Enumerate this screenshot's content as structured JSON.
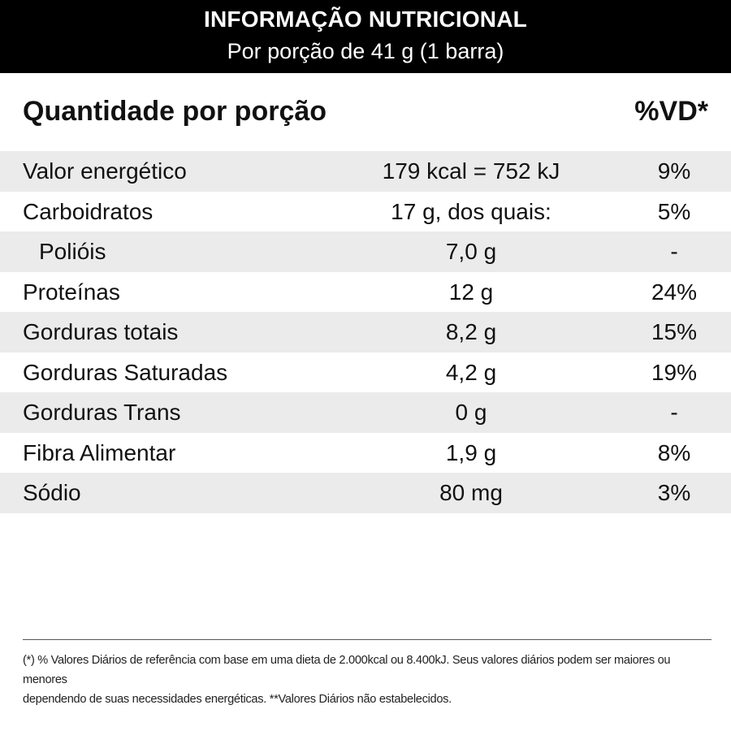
{
  "header": {
    "title": "INFORMAÇÃO NUTRICIONAL",
    "subtitle": "Por porção de 41 g (1 barra)"
  },
  "columns": {
    "quantity_heading": "Quantidade por porção",
    "vd_heading": "%VD*"
  },
  "rows": [
    {
      "name": "Valor energético",
      "qty": "179 kcal = 752 kJ",
      "vd": "9%"
    },
    {
      "name": "Carboidratos",
      "qty": "17 g, dos quais:",
      "vd": "5%"
    },
    {
      "name": "Polióis",
      "qty": "7,0 g",
      "vd": "-"
    },
    {
      "name": "Proteínas",
      "qty": "12 g",
      "vd": "24%"
    },
    {
      "name": "Gorduras totais",
      "qty": "8,2 g",
      "vd": "15%"
    },
    {
      "name": "Gorduras Saturadas",
      "qty": "4,2 g",
      "vd": "19%"
    },
    {
      "name": "Gorduras Trans",
      "qty": "0 g",
      "vd": "-"
    },
    {
      "name": "Fibra Alimentar",
      "qty": "1,9 g",
      "vd": "8%"
    },
    {
      "name": "Sódio",
      "qty": "80 mg",
      "vd": "3%"
    }
  ],
  "footer": {
    "line1": "(*) % Valores Diários de referência com base em uma dieta de 2.000kcal ou 8.400kJ. Seus valores diários podem ser maiores ou menores",
    "line2": "dependendo de suas necessidades energéticas. **Valores Diários não estabelecidos."
  },
  "colors": {
    "header_background": "#000000",
    "header_text": "#ffffff",
    "row_shade": "#ebebeb"
  }
}
